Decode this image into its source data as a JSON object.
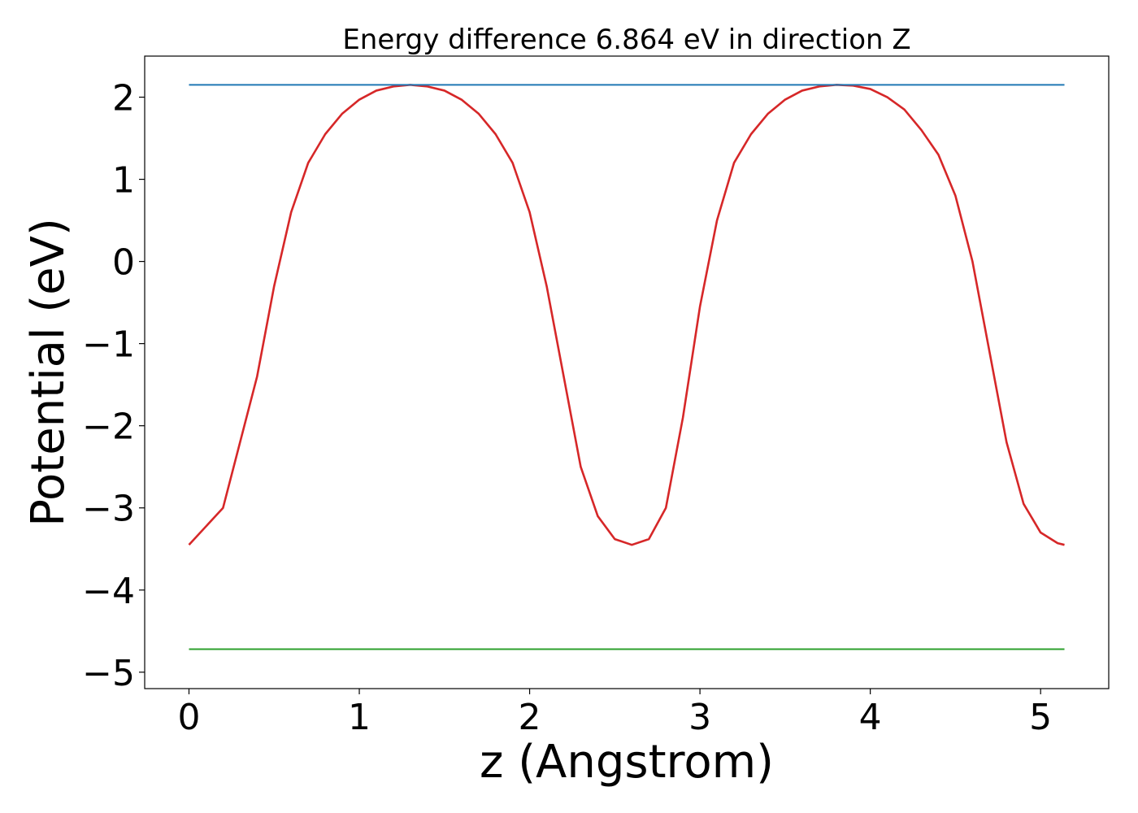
{
  "chart_data": {
    "type": "line",
    "title": "Energy difference 6.864 eV in direction Z",
    "xlabel": "z (Angstrom)",
    "ylabel": "Potential (eV)",
    "xlim": [
      -0.26,
      5.4
    ],
    "ylim": [
      -5.2,
      2.5
    ],
    "xticks": [
      0,
      1,
      2,
      3,
      4,
      5
    ],
    "xtick_labels": [
      "0",
      "1",
      "2",
      "3",
      "4",
      "5"
    ],
    "yticks": [
      -5,
      -4,
      -3,
      -2,
      -1,
      0,
      1,
      2
    ],
    "ytick_labels": [
      "−5",
      "−4",
      "−3",
      "−2",
      "−1",
      "0",
      "1",
      "2"
    ],
    "grid": false,
    "legend": "none",
    "series": [
      {
        "color": "#d62728",
        "x": [
          0,
          0.2,
          0.4,
          0.5,
          0.6,
          0.7,
          0.8,
          0.9,
          1.0,
          1.1,
          1.2,
          1.3,
          1.4,
          1.5,
          1.6,
          1.7,
          1.8,
          1.9,
          2.0,
          2.1,
          2.2,
          2.3,
          2.4,
          2.5,
          2.6,
          2.7,
          2.8,
          2.9,
          3.0,
          3.1,
          3.2,
          3.3,
          3.4,
          3.5,
          3.6,
          3.7,
          3.8,
          3.9,
          4.0,
          4.1,
          4.2,
          4.3,
          4.4,
          4.5,
          4.6,
          4.7,
          4.8,
          4.9,
          5.0,
          5.1,
          5.14
        ],
        "y": [
          -3.45,
          -3.0,
          -1.4,
          -0.3,
          0.6,
          1.2,
          1.55,
          1.8,
          1.97,
          2.08,
          2.13,
          2.15,
          2.13,
          2.08,
          1.97,
          1.8,
          1.55,
          1.2,
          0.6,
          -0.3,
          -1.4,
          -2.5,
          -3.1,
          -3.38,
          -3.45,
          -3.38,
          -3.0,
          -1.9,
          -0.55,
          0.5,
          1.2,
          1.55,
          1.8,
          1.97,
          2.08,
          2.13,
          2.15,
          2.14,
          2.1,
          2.0,
          1.85,
          1.6,
          1.3,
          0.8,
          0.0,
          -1.1,
          -2.2,
          -2.95,
          -3.3,
          -3.43,
          -3.45
        ]
      },
      {
        "color": "#1f77b4",
        "x": [
          0,
          5.14
        ],
        "y": [
          2.15,
          2.15
        ]
      },
      {
        "color": "#2ca02c",
        "x": [
          0,
          5.14
        ],
        "y": [
          -4.72,
          -4.72
        ]
      }
    ]
  }
}
